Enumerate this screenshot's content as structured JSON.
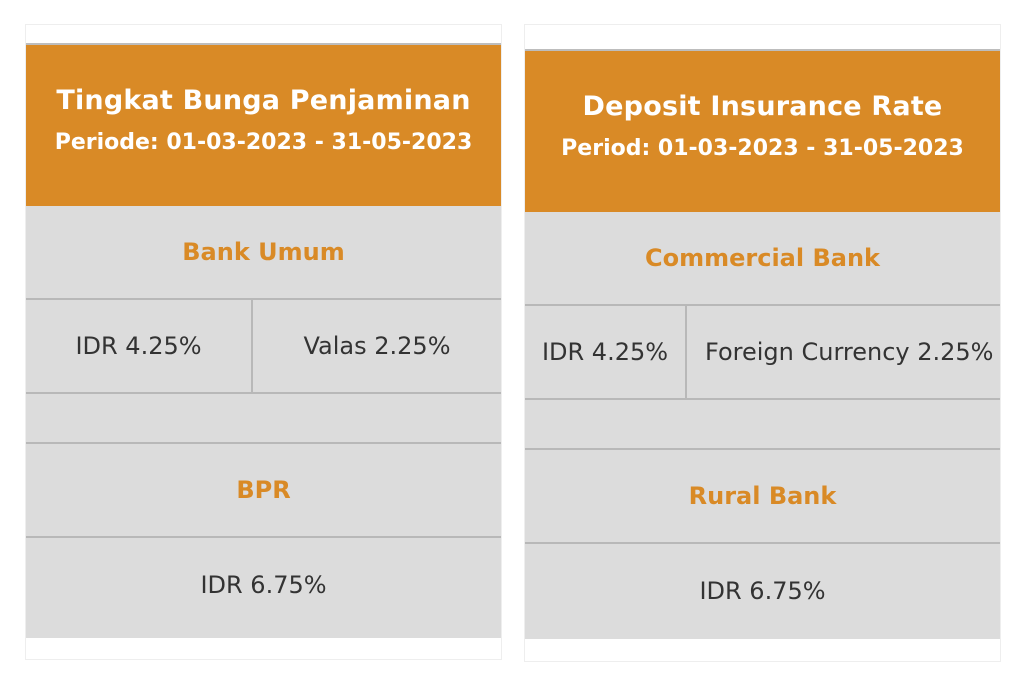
{
  "panels": [
    {
      "title": "Tingkat Bunga Penjaminan",
      "period": "Periode: 01-03-2023 - 31-05-2023",
      "sections": [
        {
          "heading": "Bank Umum",
          "rates": [
            "IDR 4.25%",
            "Valas 2.25%"
          ]
        },
        {
          "heading": "BPR",
          "rates": [
            "IDR 6.75%"
          ]
        }
      ]
    },
    {
      "title": "Deposit Insurance Rate",
      "period": "Period: 01-03-2023 - 31-05-2023",
      "sections": [
        {
          "heading": "Commercial Bank",
          "rates": [
            "IDR 4.25%",
            "Foreign Currency 2.25%"
          ]
        },
        {
          "heading": "Rural Bank",
          "rates": [
            "IDR 6.75%"
          ]
        }
      ]
    }
  ]
}
